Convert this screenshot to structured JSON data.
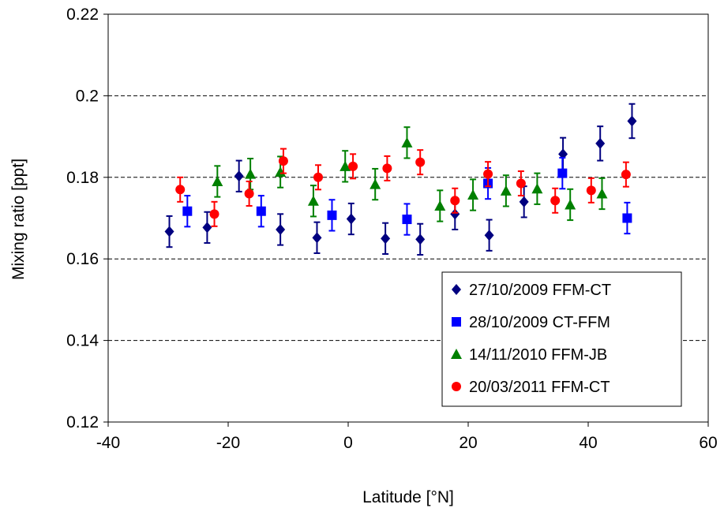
{
  "chart_data": {
    "type": "scatter",
    "xlabel": "Latitude [°N]",
    "ylabel": "Mixing ratio [ppt]",
    "xlim": [
      -40,
      60
    ],
    "ylim": [
      0.12,
      0.22
    ],
    "xticks": [
      -40,
      -20,
      0,
      20,
      40,
      60
    ],
    "yticks": [
      0.12,
      0.14,
      0.16,
      0.18,
      0.2,
      0.22
    ],
    "xtick_labels": [
      "-40",
      "-20",
      "0",
      "20",
      "40",
      "60"
    ],
    "ytick_labels": [
      "0.12",
      "0.14",
      "0.16",
      "0.18",
      "0.2",
      "0.22"
    ],
    "grid": "horizontal dashed",
    "legend_position": "bottom-right",
    "series": [
      {
        "name": "27/10/2009 FFM-CT",
        "color": "#000080",
        "marker": "diamond",
        "points": [
          {
            "x": -29.8,
            "y": 0.1667,
            "err": 0.0038
          },
          {
            "x": -23.5,
            "y": 0.1677,
            "err": 0.0038
          },
          {
            "x": -18.2,
            "y": 0.1803,
            "err": 0.0038
          },
          {
            "x": -11.3,
            "y": 0.1672,
            "err": 0.0038
          },
          {
            "x": -5.2,
            "y": 0.1652,
            "err": 0.0038
          },
          {
            "x": 0.5,
            "y": 0.1698,
            "err": 0.0038
          },
          {
            "x": 6.2,
            "y": 0.165,
            "err": 0.0038
          },
          {
            "x": 12.0,
            "y": 0.1648,
            "err": 0.0038
          },
          {
            "x": 17.8,
            "y": 0.171,
            "err": 0.0038
          },
          {
            "x": 23.5,
            "y": 0.1658,
            "err": 0.0038
          },
          {
            "x": 29.3,
            "y": 0.174,
            "err": 0.0038
          },
          {
            "x": 35.8,
            "y": 0.1857,
            "err": 0.004
          },
          {
            "x": 42.0,
            "y": 0.1883,
            "err": 0.0042
          },
          {
            "x": 47.3,
            "y": 0.1938,
            "err": 0.0042
          }
        ]
      },
      {
        "name": "28/10/2009 CT-FFM",
        "color": "#0000ff",
        "marker": "square",
        "points": [
          {
            "x": -26.8,
            "y": 0.1717,
            "err": 0.0038
          },
          {
            "x": -14.5,
            "y": 0.1717,
            "err": 0.0038
          },
          {
            "x": -2.7,
            "y": 0.1707,
            "err": 0.0038
          },
          {
            "x": 9.8,
            "y": 0.1697,
            "err": 0.0038
          },
          {
            "x": 23.3,
            "y": 0.1785,
            "err": 0.0038
          },
          {
            "x": 35.7,
            "y": 0.181,
            "err": 0.0038
          },
          {
            "x": 46.5,
            "y": 0.17,
            "err": 0.0038
          }
        ]
      },
      {
        "name": "14/11/2010 FFM-JB",
        "color": "#008000",
        "marker": "triangle",
        "points": [
          {
            "x": -21.8,
            "y": 0.179,
            "err": 0.0038
          },
          {
            "x": -16.3,
            "y": 0.1808,
            "err": 0.0038
          },
          {
            "x": -11.3,
            "y": 0.1813,
            "err": 0.0038
          },
          {
            "x": -5.8,
            "y": 0.1742,
            "err": 0.0038
          },
          {
            "x": -0.5,
            "y": 0.1827,
            "err": 0.0038
          },
          {
            "x": 4.5,
            "y": 0.1783,
            "err": 0.0038
          },
          {
            "x": 9.8,
            "y": 0.1885,
            "err": 0.0038
          },
          {
            "x": 15.3,
            "y": 0.173,
            "err": 0.0038
          },
          {
            "x": 20.8,
            "y": 0.1757,
            "err": 0.0038
          },
          {
            "x": 26.3,
            "y": 0.1767,
            "err": 0.0038
          },
          {
            "x": 31.5,
            "y": 0.1772,
            "err": 0.0038
          },
          {
            "x": 37.0,
            "y": 0.1733,
            "err": 0.0038
          },
          {
            "x": 42.3,
            "y": 0.176,
            "err": 0.0038
          }
        ]
      },
      {
        "name": "20/03/2011 FFM-CT",
        "color": "#ff0000",
        "marker": "circle",
        "points": [
          {
            "x": -28.0,
            "y": 0.177,
            "err": 0.003
          },
          {
            "x": -22.3,
            "y": 0.171,
            "err": 0.003
          },
          {
            "x": -16.5,
            "y": 0.176,
            "err": 0.003
          },
          {
            "x": -10.8,
            "y": 0.184,
            "err": 0.003
          },
          {
            "x": -5.0,
            "y": 0.18,
            "err": 0.003
          },
          {
            "x": 0.8,
            "y": 0.1827,
            "err": 0.003
          },
          {
            "x": 6.5,
            "y": 0.1822,
            "err": 0.003
          },
          {
            "x": 12.0,
            "y": 0.1837,
            "err": 0.003
          },
          {
            "x": 17.8,
            "y": 0.1743,
            "err": 0.003
          },
          {
            "x": 23.3,
            "y": 0.1808,
            "err": 0.003
          },
          {
            "x": 28.8,
            "y": 0.1785,
            "err": 0.003
          },
          {
            "x": 34.5,
            "y": 0.1743,
            "err": 0.003
          },
          {
            "x": 40.5,
            "y": 0.1768,
            "err": 0.003
          },
          {
            "x": 46.3,
            "y": 0.1807,
            "err": 0.003
          }
        ]
      }
    ]
  }
}
